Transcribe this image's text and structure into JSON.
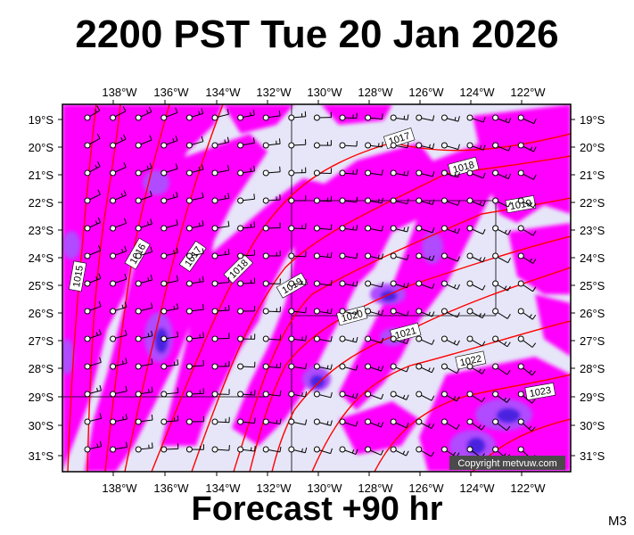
{
  "title": "2200 PST Tue 20 Jan 2026",
  "subtitle": "Forecast +90 hr",
  "model_code": "M3",
  "copyright": "Copyright metvuw.com",
  "map": {
    "lon_ticks": [
      "138°W",
      "136°W",
      "134°W",
      "132°W",
      "130°W",
      "128°W",
      "126°W",
      "124°W",
      "122°W"
    ],
    "lat_ticks": [
      "19°S",
      "20°S",
      "21°S",
      "22°S",
      "23°S",
      "24°S",
      "25°S",
      "26°S",
      "27°S",
      "28°S",
      "29°S",
      "30°S",
      "31°S"
    ],
    "isobar_labels": [
      "1015",
      "1016",
      "1017",
      "1018",
      "1019",
      "1017",
      "1018",
      "1019",
      "1020",
      "1021",
      "1022",
      "1023"
    ],
    "colors": {
      "rain_heavy": "#ff00ff",
      "rain_moderate": "#cc44ff",
      "rain_intense": "#4a22e0",
      "background": "#e6e6f8",
      "isobar": "#ff0000"
    }
  }
}
